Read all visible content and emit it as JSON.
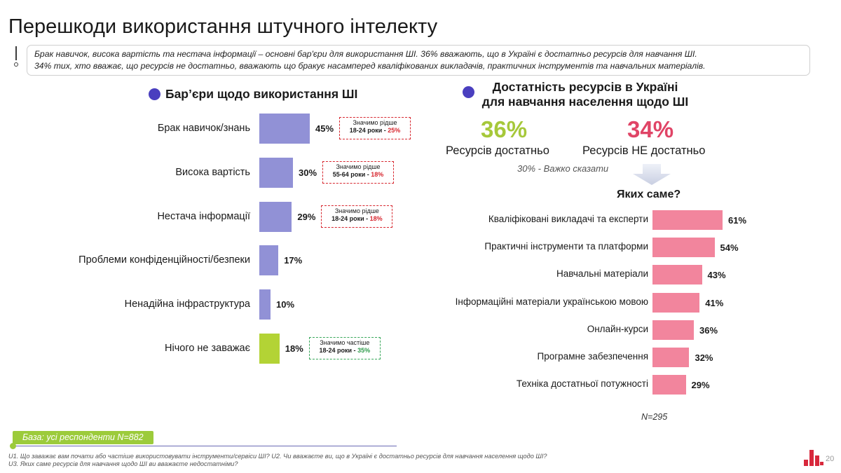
{
  "title": "Перешкоди використання штучного інтелекту",
  "note": {
    "line1": "Брак навичок, висока вартість та нестача інформації – основні бар'єри для використання ШІ. 36% вважають, що в Україні є достатньо ресурсів для навчання ШІ.",
    "line2": "34% тих, хто вважає, що ресурсів не достатньо, вважають що бракує насамперед кваліфікованих викладачів, практичних інструментів та навчальних матеріалів."
  },
  "colors": {
    "purple_bar": "#9191d6",
    "green_bar": "#b3d335",
    "pink_bar": "#f2859d",
    "green_pct": "#a6c83a",
    "red_pct": "#e04466",
    "dot": "#4a3fbf"
  },
  "chart_data": [
    {
      "type": "bar",
      "orientation": "horizontal",
      "title": "Бар’єри щодо використання ШІ",
      "categories": [
        "Брак навичок/знань",
        "Висока вартість",
        "Нестача інформації",
        "Проблеми конфіденційності/безпеки",
        "Ненадійна інфраструктура",
        "Нічого не заважає"
      ],
      "values": [
        45,
        30,
        29,
        17,
        10,
        18
      ],
      "value_labels": [
        "45%",
        "30%",
        "29%",
        "17%",
        "10%",
        "18%"
      ],
      "unit": "%",
      "annotations": [
        {
          "category": "Брак навичок/знань",
          "line1": "Значимо рідше",
          "line2": "18-24 роки - ",
          "highlight": "25%",
          "tone": "red"
        },
        {
          "category": "Висока вартість",
          "line1": "Значимо рідше",
          "line2": "55-64 роки - ",
          "highlight": "18%",
          "tone": "red"
        },
        {
          "category": "Нестача інформації",
          "line1": "Значимо рідше",
          "line2": "18-24 роки - ",
          "highlight": "18%",
          "tone": "red"
        },
        {
          "category": "Нічого не заважає",
          "line1": "Значимо частіше",
          "line2": "18-24 роки - ",
          "highlight": "35%",
          "tone": "green"
        }
      ]
    },
    {
      "type": "bar",
      "orientation": "horizontal",
      "title": "Яких саме?",
      "categories": [
        "Кваліфіковані викладачі та експерти",
        "Практичні інструменти та платформи",
        "Навчальні матеріали",
        "Інформаційні матеріали українською мовою",
        "Онлайн-курси",
        "Програмне забезпечення",
        "Техніка достатньої потужності"
      ],
      "values": [
        61,
        54,
        43,
        41,
        36,
        32,
        29
      ],
      "value_labels": [
        "61%",
        "54%",
        "43%",
        "41%",
        "36%",
        "32%",
        "29%"
      ],
      "unit": "%",
      "n": "N=295"
    }
  ],
  "resources": {
    "title_line1": "Достатність ресурсів в Україні",
    "title_line2": "для навчання населення щодо ШІ",
    "yes_pct": "36%",
    "yes_label": "Ресурсів достатньо",
    "no_pct": "34%",
    "no_label": "Ресурсів НЕ достатньо",
    "hard_to_say": "30% - Важко сказати"
  },
  "base": "База: усі респонденти N=882",
  "footnote": {
    "line1": "U1. Що заважає вам почати або частіше використовувати інструменти/сервіси ШІ? U2. Чи вважаєте ви, що в Україні є достатньо ресурсів для навчання населення щодо ШІ?",
    "line2": "U3. Яких саме ресурсів для навчання щодо ШІ ви вважаєте недостатніми?"
  },
  "page_number": "20"
}
